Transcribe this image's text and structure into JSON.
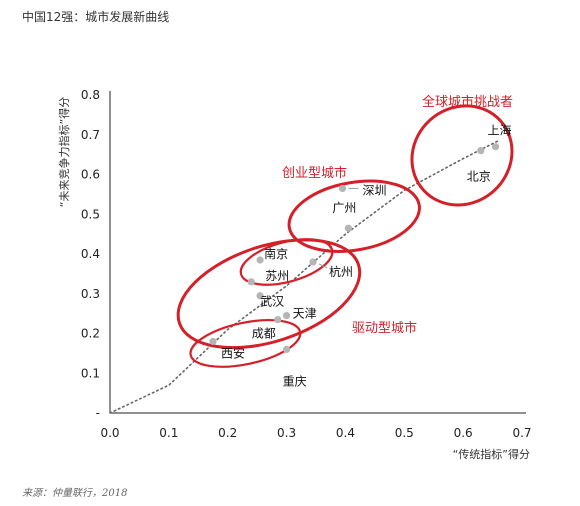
{
  "page": {
    "title": "中国12强：城市发展新曲线",
    "source": "来源：仲量联行，2018"
  },
  "colors": {
    "accent": "#d42029",
    "point": "#b5b5b5",
    "axis": "#222222"
  },
  "chart_data": {
    "type": "scatter",
    "title": "",
    "xlabel": "“传统指标”得分",
    "ylabel": "“未来竞争力指标”得分",
    "xlim": [
      0,
      0.7
    ],
    "ylim": [
      0,
      0.8
    ],
    "xticks": [
      "0.0",
      "0.1",
      "0.2",
      "0.3",
      "0.4",
      "0.5",
      "0.6",
      "0.7"
    ],
    "yticks": [
      "-",
      "0.1",
      "0.2",
      "0.3",
      "0.4",
      "0.5",
      "0.6",
      "0.7",
      "0.8"
    ],
    "grid": false,
    "points": [
      {
        "name": "上海",
        "x": 0.655,
        "y": 0.67
      },
      {
        "name": "北京",
        "x": 0.63,
        "y": 0.66
      },
      {
        "name": "深圳",
        "x": 0.395,
        "y": 0.565
      },
      {
        "name": "广州",
        "x": 0.405,
        "y": 0.465
      },
      {
        "name": "杭州",
        "x": 0.345,
        "y": 0.38
      },
      {
        "name": "南京",
        "x": 0.255,
        "y": 0.385
      },
      {
        "name": "苏州",
        "x": 0.24,
        "y": 0.33
      },
      {
        "name": "武汉",
        "x": 0.255,
        "y": 0.295
      },
      {
        "name": "天津",
        "x": 0.3,
        "y": 0.245
      },
      {
        "name": "成都",
        "x": 0.285,
        "y": 0.235
      },
      {
        "name": "西安",
        "x": 0.175,
        "y": 0.18
      },
      {
        "name": "重庆",
        "x": 0.3,
        "y": 0.16
      }
    ],
    "groups": [
      {
        "label": "全球城市挑战者"
      },
      {
        "label": "创业型城市"
      },
      {
        "label": "驱动型城市"
      }
    ]
  }
}
